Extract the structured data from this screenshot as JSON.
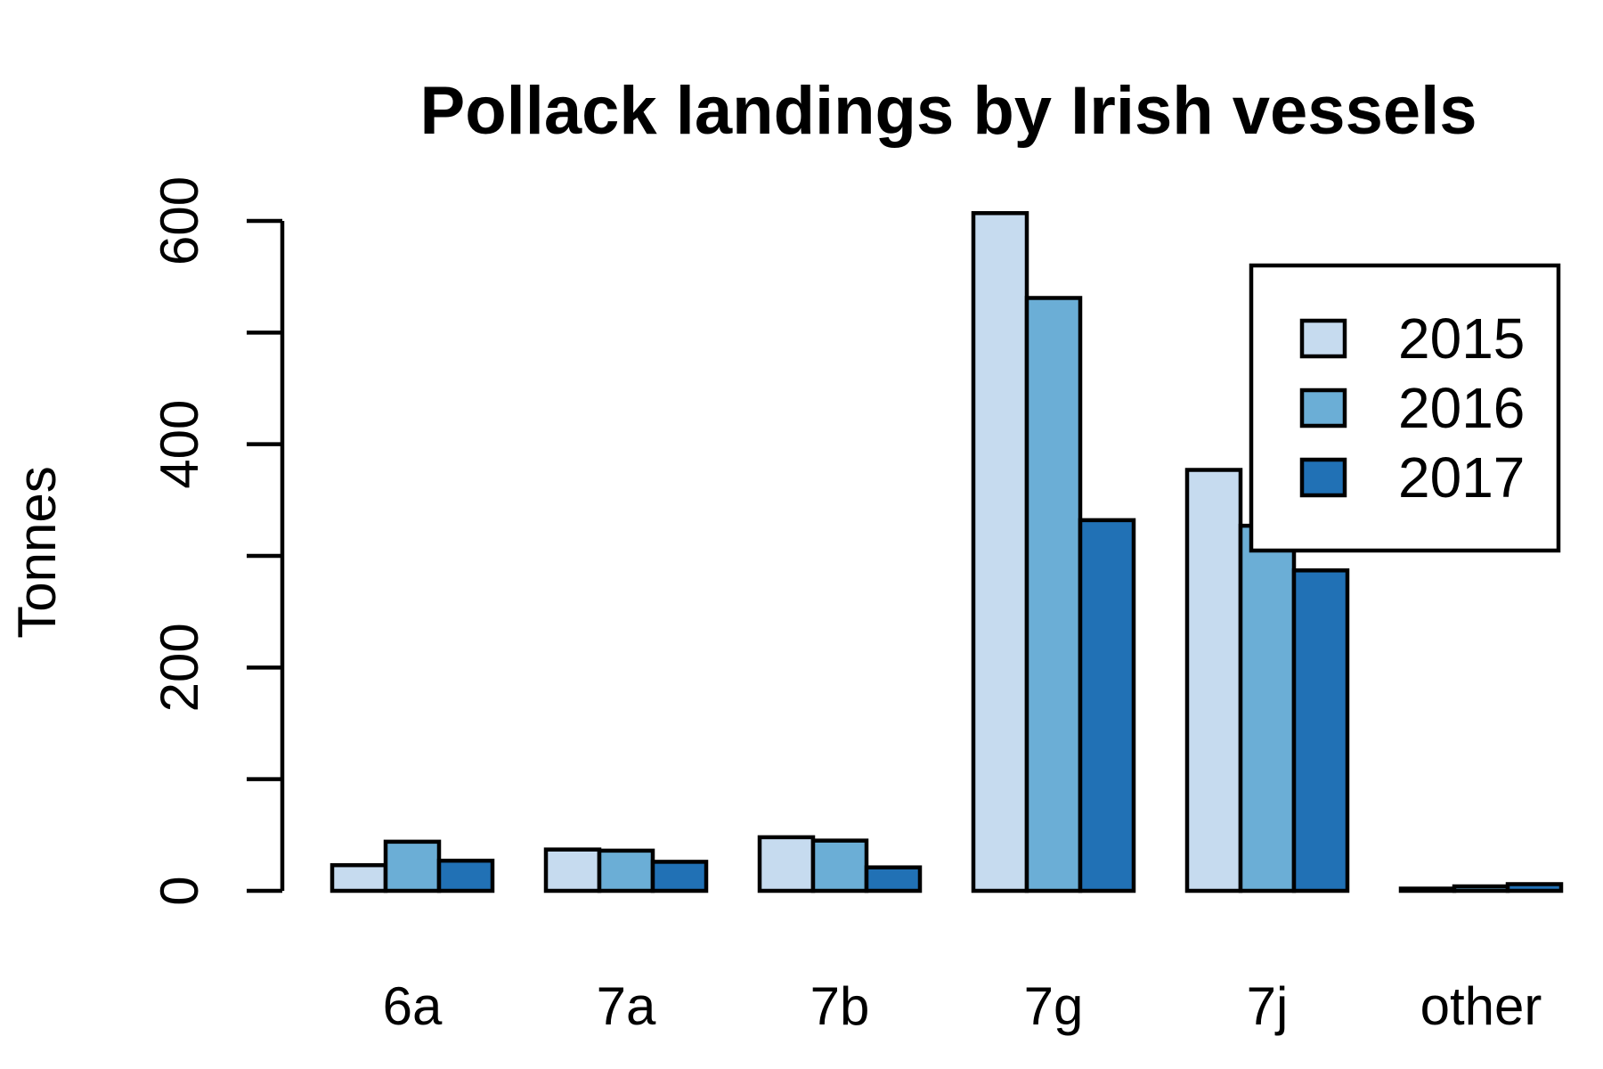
{
  "chart_data": {
    "type": "bar",
    "title": "Pollack landings by Irish vessels",
    "xlabel": "",
    "ylabel": "Tonnes",
    "categories": [
      "6a",
      "7a",
      "7b",
      "7g",
      "7j",
      "other"
    ],
    "series": [
      {
        "name": "2015",
        "color": "#c6dbef",
        "values": [
          23,
          37,
          48,
          607,
          377,
          2
        ]
      },
      {
        "name": "2016",
        "color": "#6baed6",
        "values": [
          44,
          36,
          45,
          531,
          327,
          4
        ]
      },
      {
        "name": "2017",
        "color": "#2171b5",
        "values": [
          27,
          26,
          21,
          332,
          287,
          6
        ]
      }
    ],
    "ylim": [
      0,
      600
    ],
    "yticks": [
      0,
      100,
      200,
      300,
      400,
      500,
      600
    ],
    "ytick_labels": [
      "0",
      "",
      "200",
      "",
      "400",
      "",
      "600"
    ],
    "grid": false,
    "legend_position": "top-right"
  }
}
